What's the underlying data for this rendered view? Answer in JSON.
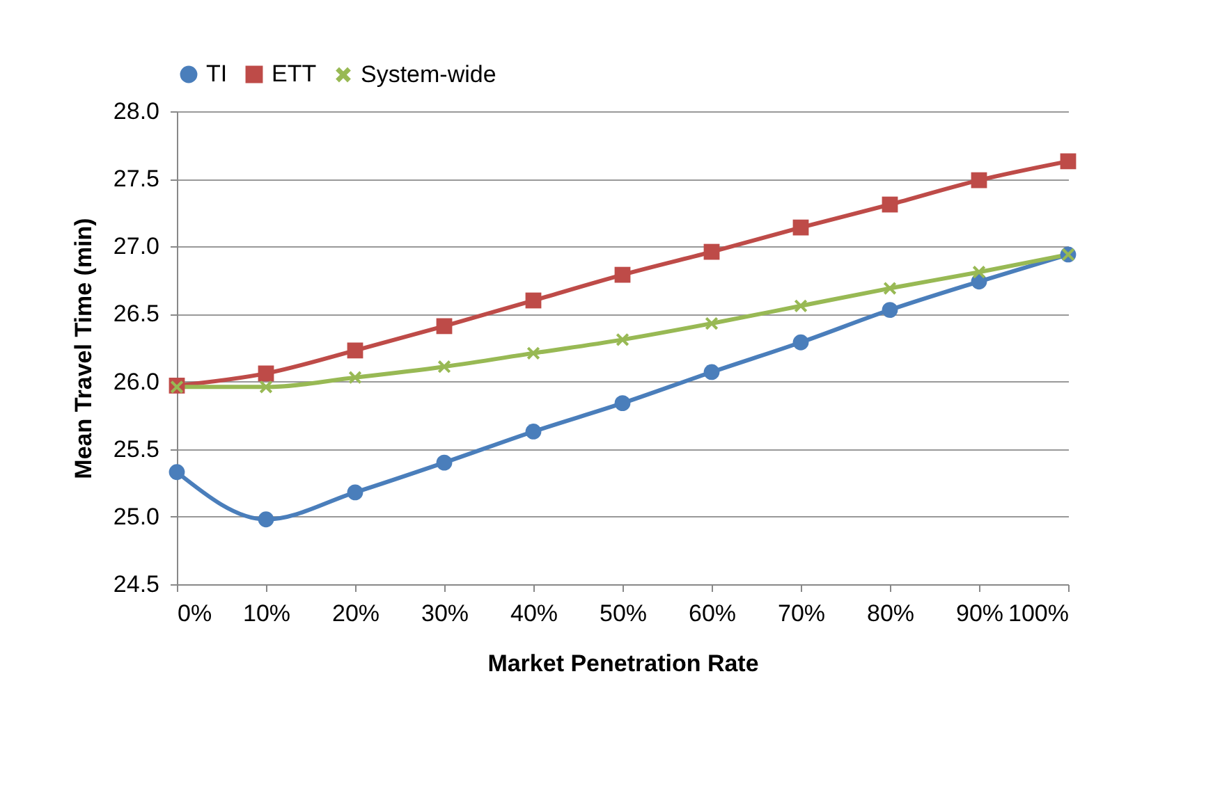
{
  "chart_data": {
    "type": "line",
    "xlabel": "Market Penetration Rate",
    "ylabel": "Mean Travel Time (min)",
    "categories": [
      "0%",
      "10%",
      "20%",
      "30%",
      "40%",
      "50%",
      "60%",
      "70%",
      "80%",
      "90%",
      "100%"
    ],
    "series": [
      {
        "name": "TI",
        "color": "#4a7ebb",
        "marker": "circle",
        "values": [
          25.33,
          24.98,
          25.18,
          25.4,
          25.63,
          25.84,
          26.07,
          26.29,
          26.53,
          26.74,
          26.94
        ]
      },
      {
        "name": "ETT",
        "color": "#be4b48",
        "marker": "square",
        "values": [
          25.97,
          26.06,
          26.23,
          26.41,
          26.6,
          26.79,
          26.96,
          27.14,
          27.31,
          27.49,
          27.63
        ]
      },
      {
        "name": "System-wide",
        "color": "#98b954",
        "marker": "cross",
        "values": [
          25.96,
          25.96,
          26.03,
          26.11,
          26.21,
          26.31,
          26.43,
          26.56,
          26.69,
          26.81,
          26.94
        ]
      }
    ],
    "ylim": [
      24.5,
      28.0
    ],
    "yticks": [
      24.5,
      {
        "value": 25,
        "label": "25.0"
      },
      25.5,
      {
        "value": 26,
        "label": "26.0"
      },
      26.5,
      {
        "value": 27,
        "label": "27.0"
      },
      27.5,
      {
        "value": 28,
        "label": "28.0"
      }
    ],
    "grid": "y",
    "legend": "top",
    "line_style": "solid"
  }
}
